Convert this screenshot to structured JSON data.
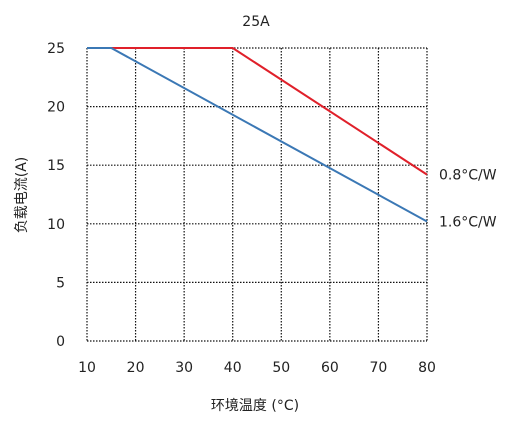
{
  "chart_data": {
    "type": "line",
    "title": "25A",
    "xlabel": "环境温度 (°C)",
    "ylabel": "负载电流(A)",
    "xlim": [
      10,
      80
    ],
    "ylim": [
      0,
      25
    ],
    "x_ticks": [
      10,
      20,
      30,
      40,
      50,
      60,
      70,
      80
    ],
    "y_ticks": [
      0,
      5,
      10,
      15,
      20,
      25
    ],
    "grid": true,
    "series": [
      {
        "name": "0.8°C/W",
        "color": "#e0202a",
        "points": [
          [
            10,
            25
          ],
          [
            40,
            25
          ],
          [
            80,
            14.2
          ]
        ]
      },
      {
        "name": "1.6°C/W",
        "color": "#3b78b5",
        "points": [
          [
            10,
            25
          ],
          [
            15,
            25
          ],
          [
            80,
            10.2
          ]
        ]
      }
    ]
  }
}
